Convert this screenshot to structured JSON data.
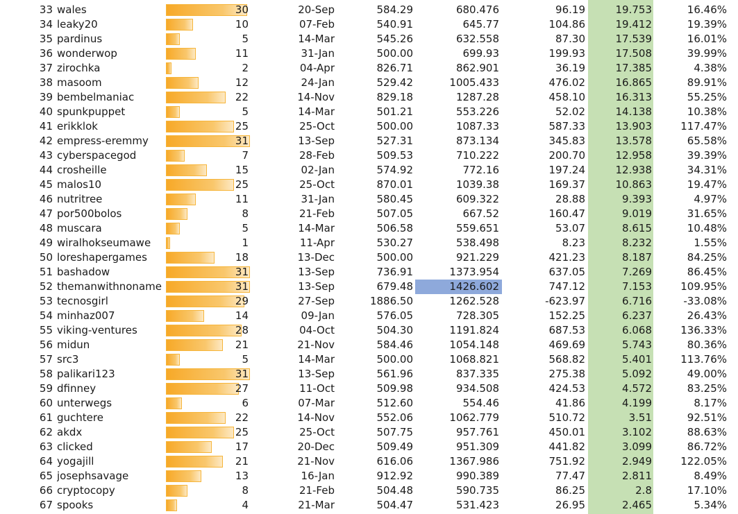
{
  "sheet": {
    "max_count": 31,
    "colors": {
      "score_column_fill": "#c6e0b4",
      "selected_cell_fill": "#8ea9db",
      "databar_fill": "#f7a928",
      "databar_border": "#f6b53a"
    },
    "selected_row_rank": "52",
    "rows": [
      {
        "rank": "33",
        "user": "wales",
        "count": 30,
        "date": "20-Sep",
        "start": "584.29",
        "current": "680.476",
        "diff": "96.19",
        "score": "19.753",
        "pct": "16.46%"
      },
      {
        "rank": "34",
        "user": "leaky20",
        "count": 10,
        "date": "07-Feb",
        "start": "540.91",
        "current": "645.77",
        "diff": "104.86",
        "score": "19.412",
        "pct": "19.39%"
      },
      {
        "rank": "35",
        "user": "pardinus",
        "count": 5,
        "date": "14-Mar",
        "start": "545.26",
        "current": "632.558",
        "diff": "87.30",
        "score": "17.539",
        "pct": "16.01%"
      },
      {
        "rank": "36",
        "user": "wonderwop",
        "count": 11,
        "date": "31-Jan",
        "start": "500.00",
        "current": "699.93",
        "diff": "199.93",
        "score": "17.508",
        "pct": "39.99%"
      },
      {
        "rank": "37",
        "user": "zirochka",
        "count": 2,
        "date": "04-Apr",
        "start": "826.71",
        "current": "862.901",
        "diff": "36.19",
        "score": "17.385",
        "pct": "4.38%"
      },
      {
        "rank": "38",
        "user": "masoom",
        "count": 12,
        "date": "24-Jan",
        "start": "529.42",
        "current": "1005.433",
        "diff": "476.02",
        "score": "16.865",
        "pct": "89.91%"
      },
      {
        "rank": "39",
        "user": "bembelmaniac",
        "count": 22,
        "date": "14-Nov",
        "start": "829.18",
        "current": "1287.28",
        "diff": "458.10",
        "score": "16.313",
        "pct": "55.25%"
      },
      {
        "rank": "40",
        "user": "spunkpuppet",
        "count": 5,
        "date": "14-Mar",
        "start": "501.21",
        "current": "553.226",
        "diff": "52.02",
        "score": "14.138",
        "pct": "10.38%"
      },
      {
        "rank": "41",
        "user": "erikklok",
        "count": 25,
        "date": "25-Oct",
        "start": "500.00",
        "current": "1087.33",
        "diff": "587.33",
        "score": "13.903",
        "pct": "117.47%"
      },
      {
        "rank": "42",
        "user": "empress-eremmy",
        "count": 31,
        "date": "13-Sep",
        "start": "527.31",
        "current": "873.134",
        "diff": "345.83",
        "score": "13.578",
        "pct": "65.58%"
      },
      {
        "rank": "43",
        "user": "cyberspacegod",
        "count": 7,
        "date": "28-Feb",
        "start": "509.53",
        "current": "710.222",
        "diff": "200.70",
        "score": "12.958",
        "pct": "39.39%"
      },
      {
        "rank": "44",
        "user": "crosheille",
        "count": 15,
        "date": "02-Jan",
        "start": "574.92",
        "current": "772.16",
        "diff": "197.24",
        "score": "12.938",
        "pct": "34.31%"
      },
      {
        "rank": "45",
        "user": "malos10",
        "count": 25,
        "date": "25-Oct",
        "start": "870.01",
        "current": "1039.38",
        "diff": "169.37",
        "score": "10.863",
        "pct": "19.47%"
      },
      {
        "rank": "46",
        "user": "nutritree",
        "count": 11,
        "date": "31-Jan",
        "start": "580.45",
        "current": "609.322",
        "diff": "28.88",
        "score": "9.393",
        "pct": "4.97%"
      },
      {
        "rank": "47",
        "user": "por500bolos",
        "count": 8,
        "date": "21-Feb",
        "start": "507.05",
        "current": "667.52",
        "diff": "160.47",
        "score": "9.019",
        "pct": "31.65%"
      },
      {
        "rank": "48",
        "user": "muscara",
        "count": 5,
        "date": "14-Mar",
        "start": "506.58",
        "current": "559.651",
        "diff": "53.07",
        "score": "8.615",
        "pct": "10.48%"
      },
      {
        "rank": "49",
        "user": "wiralhokseumawe",
        "count": 1,
        "date": "11-Apr",
        "start": "530.27",
        "current": "538.498",
        "diff": "8.23",
        "score": "8.232",
        "pct": "1.55%"
      },
      {
        "rank": "50",
        "user": "loreshapergames",
        "count": 18,
        "date": "13-Dec",
        "start": "500.00",
        "current": "921.229",
        "diff": "421.23",
        "score": "8.187",
        "pct": "84.25%"
      },
      {
        "rank": "51",
        "user": "bashadow",
        "count": 31,
        "date": "13-Sep",
        "start": "736.91",
        "current": "1373.954",
        "diff": "637.05",
        "score": "7.269",
        "pct": "86.45%"
      },
      {
        "rank": "52",
        "user": "themanwithnoname",
        "count": 31,
        "date": "13-Sep",
        "start": "679.48",
        "current": "1426.602",
        "diff": "747.12",
        "score": "7.153",
        "pct": "109.95%"
      },
      {
        "rank": "53",
        "user": "tecnosgirl",
        "count": 29,
        "date": "27-Sep",
        "start": "1886.50",
        "current": "1262.528",
        "diff": "-623.97",
        "score": "6.716",
        "pct": "-33.08%"
      },
      {
        "rank": "54",
        "user": "minhaz007",
        "count": 14,
        "date": "09-Jan",
        "start": "576.05",
        "current": "728.305",
        "diff": "152.25",
        "score": "6.237",
        "pct": "26.43%"
      },
      {
        "rank": "55",
        "user": "viking-ventures",
        "count": 28,
        "date": "04-Oct",
        "start": "504.30",
        "current": "1191.824",
        "diff": "687.53",
        "score": "6.068",
        "pct": "136.33%"
      },
      {
        "rank": "56",
        "user": "midun",
        "count": 21,
        "date": "21-Nov",
        "start": "584.46",
        "current": "1054.148",
        "diff": "469.69",
        "score": "5.743",
        "pct": "80.36%"
      },
      {
        "rank": "57",
        "user": "src3",
        "count": 5,
        "date": "14-Mar",
        "start": "500.00",
        "current": "1068.821",
        "diff": "568.82",
        "score": "5.401",
        "pct": "113.76%"
      },
      {
        "rank": "58",
        "user": "palikari123",
        "count": 31,
        "date": "13-Sep",
        "start": "561.96",
        "current": "837.335",
        "diff": "275.38",
        "score": "5.092",
        "pct": "49.00%"
      },
      {
        "rank": "59",
        "user": "dfinney",
        "count": 27,
        "date": "11-Oct",
        "start": "509.98",
        "current": "934.508",
        "diff": "424.53",
        "score": "4.572",
        "pct": "83.25%"
      },
      {
        "rank": "60",
        "user": "unterwegs",
        "count": 6,
        "date": "07-Mar",
        "start": "512.60",
        "current": "554.46",
        "diff": "41.86",
        "score": "4.199",
        "pct": "8.17%"
      },
      {
        "rank": "61",
        "user": "guchtere",
        "count": 22,
        "date": "14-Nov",
        "start": "552.06",
        "current": "1062.779",
        "diff": "510.72",
        "score": "3.51",
        "pct": "92.51%"
      },
      {
        "rank": "62",
        "user": "akdx",
        "count": 25,
        "date": "25-Oct",
        "start": "507.75",
        "current": "957.761",
        "diff": "450.01",
        "score": "3.102",
        "pct": "88.63%"
      },
      {
        "rank": "63",
        "user": "clicked",
        "count": 17,
        "date": "20-Dec",
        "start": "509.49",
        "current": "951.309",
        "diff": "441.82",
        "score": "3.099",
        "pct": "86.72%"
      },
      {
        "rank": "64",
        "user": "yogajill",
        "count": 21,
        "date": "21-Nov",
        "start": "616.06",
        "current": "1367.986",
        "diff": "751.92",
        "score": "2.949",
        "pct": "122.05%"
      },
      {
        "rank": "65",
        "user": "josephsavage",
        "count": 13,
        "date": "16-Jan",
        "start": "912.92",
        "current": "990.389",
        "diff": "77.47",
        "score": "2.811",
        "pct": "8.49%"
      },
      {
        "rank": "66",
        "user": "cryptocopy",
        "count": 8,
        "date": "21-Feb",
        "start": "504.48",
        "current": "590.735",
        "diff": "86.25",
        "score": "2.8",
        "pct": "17.10%"
      },
      {
        "rank": "67",
        "user": "spooks",
        "count": 4,
        "date": "21-Mar",
        "start": "504.47",
        "current": "531.423",
        "diff": "26.95",
        "score": "2.465",
        "pct": "5.34%"
      }
    ]
  }
}
